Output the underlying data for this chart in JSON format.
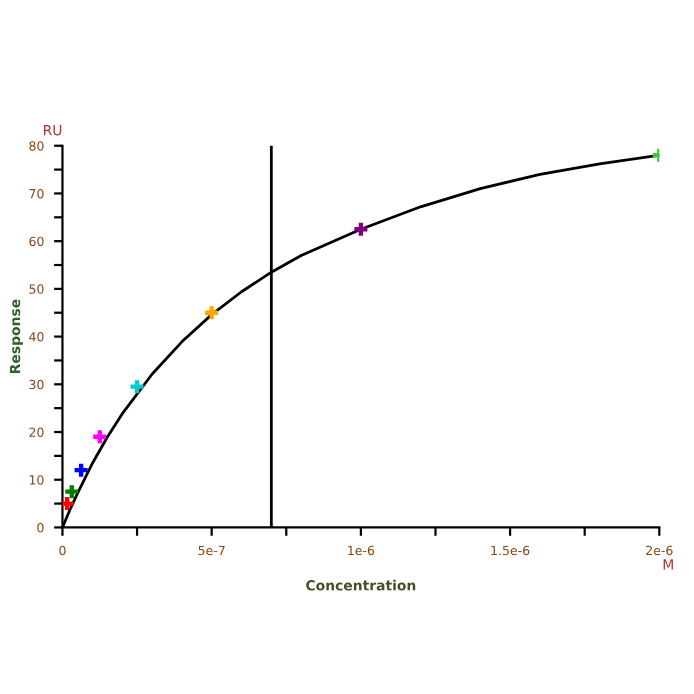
{
  "chart_data": {
    "type": "scatter",
    "xlabel": "Concentration",
    "ylabel": "Response",
    "annotations": [
      "RU",
      "M"
    ],
    "series": [
      {
        "marker": "cross",
        "x": [
          1.5625e-08,
          3.125e-08,
          6.25e-08,
          1.25e-07,
          2.5e-07,
          5e-07,
          1e-06,
          2e-06
        ],
        "values": [
          5,
          7.5,
          12,
          19,
          29.5,
          45,
          62.5,
          78
        ],
        "colors": [
          "#ff0000",
          "#008000",
          "#0000ff",
          "#ff00ff",
          "#00cccc",
          "#ffa500",
          "#800080",
          "#33cc33"
        ]
      },
      {
        "type": "line",
        "marker": "none",
        "color": "#000000",
        "x": [
          0,
          2.5e-08,
          5e-08,
          1e-07,
          1.5e-07,
          2e-07,
          3e-07,
          4e-07,
          5e-07,
          6e-07,
          7e-07,
          8e-07,
          1e-06,
          1.2e-06,
          1.4e-06,
          1.6e-06,
          1.8e-06,
          2e-06
        ],
        "values": [
          0,
          3.7,
          7.1,
          13.4,
          18.9,
          23.8,
          32.1,
          38.9,
          44.6,
          49.4,
          53.5,
          57,
          62.5,
          67.2,
          71,
          74,
          76.2,
          78
        ]
      }
    ],
    "ref_lines": [
      {
        "axis": "x",
        "value": 7e-07,
        "color": "#000000"
      }
    ],
    "xlim": [
      0,
      2e-06
    ],
    "xticks": [
      0,
      {
        "value": 2.5e-07,
        "label": null
      },
      {
        "value": 5e-07,
        "label": "5e-7"
      },
      {
        "value": 7.5e-07,
        "label": null
      },
      {
        "value": 1e-06,
        "label": "1e-6"
      },
      {
        "value": 1.25e-06,
        "label": null
      },
      {
        "value": 1.5e-06,
        "label": "1.5e-6"
      },
      {
        "value": 1.75e-06,
        "label": null
      },
      {
        "value": 2e-06,
        "label": "2e-6"
      }
    ],
    "ylim": [
      0,
      80
    ],
    "yticks": [
      0,
      {
        "value": 5,
        "label": null
      },
      10,
      {
        "value": 15,
        "label": null
      },
      20,
      {
        "value": 25,
        "label": null
      },
      30,
      {
        "value": 35,
        "label": null
      },
      40,
      {
        "value": 45,
        "label": null
      },
      50,
      {
        "value": 55,
        "label": null
      },
      60,
      {
        "value": 65,
        "label": null
      },
      70,
      {
        "value": 75,
        "label": null
      },
      80
    ],
    "grid": false,
    "legend": false
  }
}
